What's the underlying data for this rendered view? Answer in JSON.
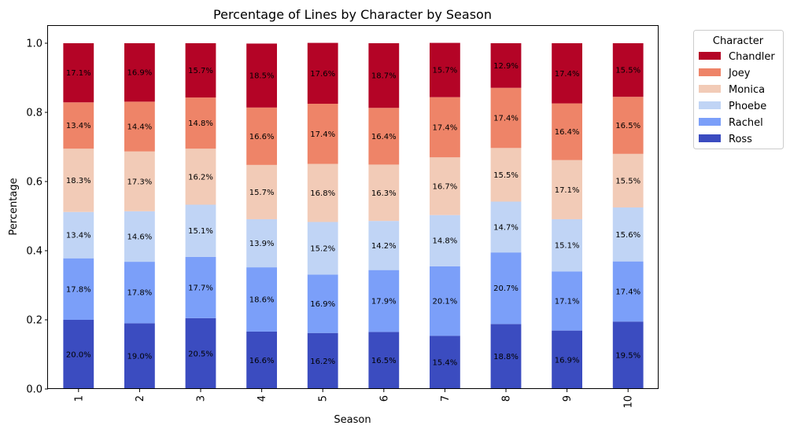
{
  "chart_data": {
    "type": "bar",
    "stacked": true,
    "title": "Percentage of Lines by Character by Season",
    "xlabel": "Season",
    "ylabel": "Percentage",
    "ylim": [
      0,
      1.05
    ],
    "yticks": [
      "0.0",
      "0.2",
      "0.4",
      "0.6",
      "0.8",
      "1.0"
    ],
    "categories": [
      "1",
      "2",
      "3",
      "4",
      "5",
      "6",
      "7",
      "8",
      "9",
      "10"
    ],
    "series": [
      {
        "name": "Ross",
        "color": "#3b4cc0",
        "values": [
          0.2,
          0.19,
          0.205,
          0.166,
          0.162,
          0.165,
          0.154,
          0.188,
          0.169,
          0.195
        ],
        "labels": [
          "20.0%",
          "19.0%",
          "20.5%",
          "16.6%",
          "16.2%",
          "16.5%",
          "15.4%",
          "18.8%",
          "16.9%",
          "19.5%"
        ]
      },
      {
        "name": "Rachel",
        "color": "#7b9ff9",
        "values": [
          0.178,
          0.178,
          0.177,
          0.186,
          0.169,
          0.179,
          0.201,
          0.207,
          0.171,
          0.174
        ],
        "labels": [
          "17.8%",
          "17.8%",
          "17.7%",
          "18.6%",
          "16.9%",
          "17.9%",
          "20.1%",
          "20.7%",
          "17.1%",
          "17.4%"
        ]
      },
      {
        "name": "Phoebe",
        "color": "#c0d4f5",
        "values": [
          0.134,
          0.146,
          0.151,
          0.139,
          0.152,
          0.142,
          0.148,
          0.147,
          0.151,
          0.156
        ],
        "labels": [
          "13.4%",
          "14.6%",
          "15.1%",
          "13.9%",
          "15.2%",
          "14.2%",
          "14.8%",
          "14.7%",
          "15.1%",
          "15.6%"
        ]
      },
      {
        "name": "Monica",
        "color": "#f2cbb7",
        "values": [
          0.183,
          0.173,
          0.162,
          0.157,
          0.168,
          0.163,
          0.167,
          0.155,
          0.171,
          0.155
        ],
        "labels": [
          "18.3%",
          "17.3%",
          "16.2%",
          "15.7%",
          "16.8%",
          "16.3%",
          "16.7%",
          "15.5%",
          "17.1%",
          "15.5%"
        ]
      },
      {
        "name": "Joey",
        "color": "#ee8468",
        "values": [
          0.134,
          0.144,
          0.148,
          0.166,
          0.174,
          0.164,
          0.174,
          0.174,
          0.164,
          0.165
        ],
        "labels": [
          "13.4%",
          "14.4%",
          "14.8%",
          "16.6%",
          "17.4%",
          "16.4%",
          "17.4%",
          "17.4%",
          "16.4%",
          "16.5%"
        ]
      },
      {
        "name": "Chandler",
        "color": "#b40426",
        "values": [
          0.171,
          0.169,
          0.157,
          0.185,
          0.176,
          0.187,
          0.157,
          0.129,
          0.174,
          0.155
        ],
        "labels": [
          "17.1%",
          "16.9%",
          "15.7%",
          "18.5%",
          "17.6%",
          "18.7%",
          "15.7%",
          "12.9%",
          "17.4%",
          "15.5%"
        ]
      }
    ],
    "legend": {
      "title": "Character",
      "placement": "outside-top-right",
      "order": [
        "Chandler",
        "Joey",
        "Monica",
        "Phoebe",
        "Rachel",
        "Ross"
      ]
    },
    "grid": false
  }
}
